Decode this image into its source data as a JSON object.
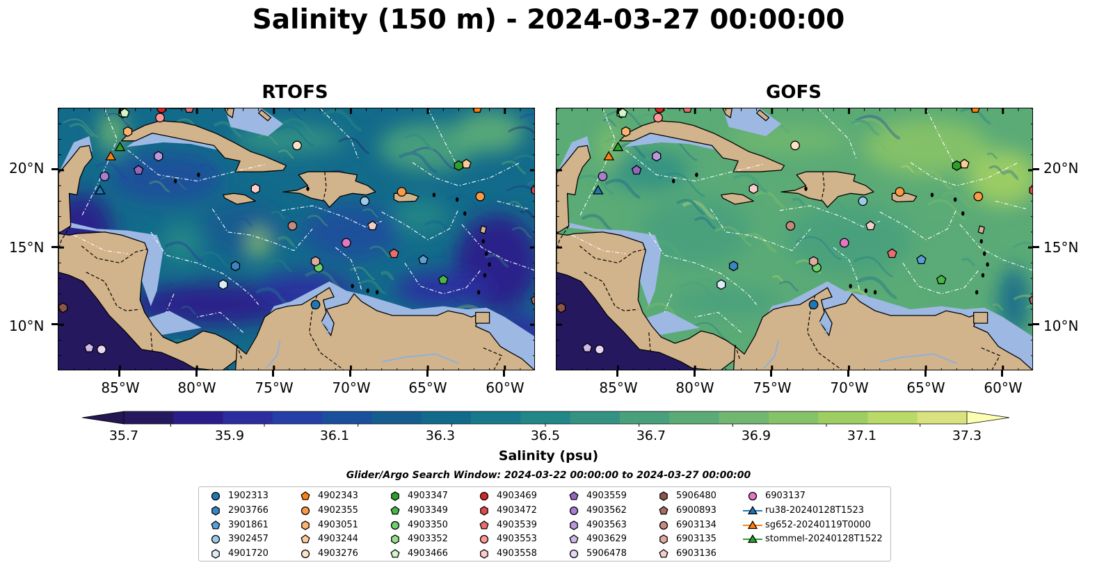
{
  "title": "Salinity (150 m) - 2024-03-27 00:00:00",
  "panels": [
    {
      "title": "RTOFS",
      "name": "rtofs"
    },
    {
      "title": "GOFS",
      "name": "gofs"
    }
  ],
  "map_extent": {
    "lon": [
      -89,
      -58
    ],
    "lat": [
      7,
      24
    ]
  },
  "lat_ticks": [
    {
      "value": 20,
      "label": "20°N"
    },
    {
      "value": 15,
      "label": "15°N"
    },
    {
      "value": 10,
      "label": "10°N"
    }
  ],
  "lon_ticks": [
    {
      "value": -85,
      "label": "85°W"
    },
    {
      "value": -80,
      "label": "80°W"
    },
    {
      "value": -75,
      "label": "75°W"
    },
    {
      "value": -70,
      "label": "70°W"
    },
    {
      "value": -65,
      "label": "65°W"
    },
    {
      "value": -60,
      "label": "60°W"
    }
  ],
  "colorbar": {
    "label": "Salinity (psu)",
    "range": [
      35.6,
      37.4
    ],
    "ticks": [
      "35.7",
      "35.9",
      "36.1",
      "36.3",
      "36.5",
      "36.7",
      "36.9",
      "37.1",
      "37.3"
    ],
    "colors": [
      "#26185f",
      "#2a1d8a",
      "#2c2ea0",
      "#253fa6",
      "#1a4f9c",
      "#155d8f",
      "#136b8b",
      "#18798a",
      "#238687",
      "#349283",
      "#48a07c",
      "#5bab77",
      "#70b76f",
      "#86c267",
      "#9ecd62",
      "#b9d968",
      "#d8e27f"
    ],
    "under_color": "#231651",
    "over_color": "#fcffb2"
  },
  "search_window": "Glider/Argo Search Window: 2024-03-22 00:00:00 to 2024-03-27 00:00:00",
  "legend": [
    {
      "label": "1902313",
      "marker": "circle",
      "color": "#1f77b4"
    },
    {
      "label": "2903766",
      "marker": "hexagon",
      "color": "#3a86c0"
    },
    {
      "label": "3901861",
      "marker": "pentagon",
      "color": "#5aa0d6"
    },
    {
      "label": "3902457",
      "marker": "circle",
      "color": "#9ecae9"
    },
    {
      "label": "4901720",
      "marker": "hexagon",
      "color": "#dcecf8"
    },
    {
      "label": "4902343",
      "marker": "pentagon",
      "color": "#ff7f0e"
    },
    {
      "label": "4902355",
      "marker": "circle",
      "color": "#fd9a45"
    },
    {
      "label": "4903051",
      "marker": "hexagon",
      "color": "#feb46d"
    },
    {
      "label": "4903244",
      "marker": "pentagon",
      "color": "#fdcb96"
    },
    {
      "label": "4903276",
      "marker": "circle",
      "color": "#fde3c6"
    },
    {
      "label": "4903347",
      "marker": "hexagon",
      "color": "#2ca02c"
    },
    {
      "label": "4903349",
      "marker": "pentagon",
      "color": "#48b648"
    },
    {
      "label": "4903350",
      "marker": "circle",
      "color": "#6ed06e"
    },
    {
      "label": "4903352",
      "marker": "hexagon",
      "color": "#98df8a"
    },
    {
      "label": "4903466",
      "marker": "pentagon",
      "color": "#d2f5c9"
    },
    {
      "label": "4903469",
      "marker": "circle",
      "color": "#d62728"
    },
    {
      "label": "4903472",
      "marker": "hexagon",
      "color": "#e04a4a"
    },
    {
      "label": "4903539",
      "marker": "pentagon",
      "color": "#eb6e6e"
    },
    {
      "label": "4903553",
      "marker": "circle",
      "color": "#ff9896"
    },
    {
      "label": "4903558",
      "marker": "hexagon",
      "color": "#ffcccc"
    },
    {
      "label": "4903559",
      "marker": "pentagon",
      "color": "#9467bd"
    },
    {
      "label": "4903562",
      "marker": "circle",
      "color": "#a97dd0"
    },
    {
      "label": "4903563",
      "marker": "hexagon",
      "color": "#bb98dc"
    },
    {
      "label": "4903629",
      "marker": "pentagon",
      "color": "#d0b8ea"
    },
    {
      "label": "5906478",
      "marker": "circle",
      "color": "#e8d8f5"
    },
    {
      "label": "5906480",
      "marker": "hexagon",
      "color": "#8c564b"
    },
    {
      "label": "6900893",
      "marker": "pentagon",
      "color": "#a46e62"
    },
    {
      "label": "6903134",
      "marker": "circle",
      "color": "#c48a7d"
    },
    {
      "label": "6903135",
      "marker": "hexagon",
      "color": "#e0aaa0"
    },
    {
      "label": "6903136",
      "marker": "pentagon",
      "color": "#f4cfc8"
    },
    {
      "label": "6903137",
      "marker": "circle",
      "color": "#e377c2"
    },
    {
      "label": "ru38-20240128T1523",
      "marker": "triangle",
      "color": "#1f77b4"
    },
    {
      "label": "sg652-20240119T0000",
      "marker": "triangle",
      "color": "#ff7f0e"
    },
    {
      "label": "stommel-20240128T1522",
      "marker": "triangle",
      "color": "#2ca02c"
    }
  ],
  "observations": [
    {
      "id": "1902313",
      "lon": -72.3,
      "lat": 11.3
    },
    {
      "id": "3901861",
      "lon": -65.3,
      "lat": 14.2
    },
    {
      "id": "2903766",
      "lon": -77.5,
      "lat": 13.8
    },
    {
      "id": "3902457",
      "lon": -69.1,
      "lat": 18.0
    },
    {
      "id": "4901720",
      "lon": -78.3,
      "lat": 12.6
    },
    {
      "id": "4902343",
      "lon": -61.8,
      "lat": 24.0
    },
    {
      "id": "4902355",
      "lon": -61.6,
      "lat": 18.3
    },
    {
      "id": "4903051",
      "lon": -84.5,
      "lat": 22.5
    },
    {
      "id": "4903244",
      "lon": -62.5,
      "lat": 20.4
    },
    {
      "id": "4903276",
      "lon": -73.5,
      "lat": 21.6
    },
    {
      "id": "4903347",
      "lon": -63.0,
      "lat": 20.3
    },
    {
      "id": "4903349",
      "lon": -64.0,
      "lat": 12.9
    },
    {
      "id": "4903350",
      "lon": -72.1,
      "lat": 13.7
    },
    {
      "id": "4903352",
      "lon": -84.8,
      "lat": 23.7
    },
    {
      "id": "4903466",
      "lon": -84.7,
      "lat": 23.7
    },
    {
      "id": "4903469",
      "lon": -82.3,
      "lat": 24.0
    },
    {
      "id": "4903539",
      "lon": -80.5,
      "lat": 24.0
    },
    {
      "id": "4903553",
      "lon": -82.4,
      "lat": 23.4
    },
    {
      "id": "4903558",
      "lon": -76.2,
      "lat": 18.8
    },
    {
      "id": "4903559",
      "lon": -83.8,
      "lat": 20.0
    },
    {
      "id": "4903562",
      "lon": -86.0,
      "lat": 19.6
    },
    {
      "id": "4903563",
      "lon": -82.5,
      "lat": 20.9
    },
    {
      "id": "4903629",
      "lon": -87.0,
      "lat": 8.5
    },
    {
      "id": "5906478",
      "lon": -86.2,
      "lat": 8.4
    },
    {
      "id": "5906480",
      "lon": -88.7,
      "lat": 11.1
    },
    {
      "id": "6900893",
      "lon": -58.0,
      "lat": 11.6
    },
    {
      "id": "6903134",
      "lon": -73.8,
      "lat": 16.4
    },
    {
      "id": "6903135",
      "lon": -72.3,
      "lat": 14.1
    },
    {
      "id": "6903136",
      "lon": -68.6,
      "lat": 16.4
    },
    {
      "id": "6903137",
      "lon": -70.3,
      "lat": 15.3
    },
    {
      "id": "4903472",
      "lon": -58.0,
      "lat": 18.7
    },
    {
      "id": "4903539",
      "lon": -67.2,
      "lat": 14.6
    },
    {
      "id": "4902355",
      "lon": -66.7,
      "lat": 18.6
    },
    {
      "id": "ru38-20240128T1523",
      "lon": -86.3,
      "lat": 18.7
    },
    {
      "id": "sg652-20240119T0000",
      "lon": -85.6,
      "lat": 20.9
    },
    {
      "id": "stommel-20240128T1522",
      "lon": -85.0,
      "lat": 21.5
    }
  ]
}
